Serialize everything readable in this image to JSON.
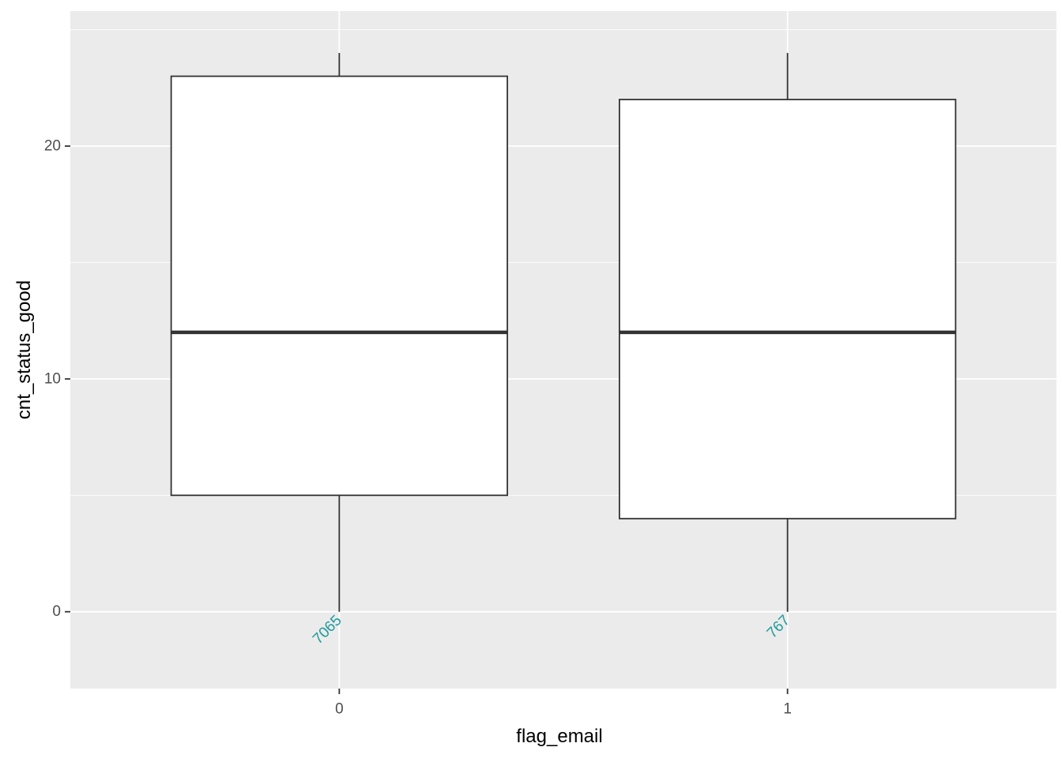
{
  "chart_data": {
    "type": "box",
    "title": "",
    "xlabel": "flag_email",
    "ylabel": "cnt_status_good",
    "categories": [
      "0",
      "1"
    ],
    "boxes": [
      {
        "category": "0",
        "whisker_low": 0,
        "q1": 5,
        "median": 12,
        "q3": 23,
        "whisker_high": 24,
        "count": "7065"
      },
      {
        "category": "1",
        "whisker_low": 0,
        "q1": 4,
        "median": 12,
        "q3": 22,
        "whisker_high": 24,
        "count": "767"
      }
    ],
    "ylim": [
      -3.3,
      25.8
    ],
    "yticks": [
      0,
      10,
      20
    ],
    "ytick_labels": [
      "0",
      "10",
      "20"
    ],
    "ygrid_minor": [
      5,
      15,
      25
    ],
    "grid": true,
    "legend": "none",
    "colors": {
      "panel_background": "#ebebeb",
      "grid": "#ffffff",
      "box_fill": "#ffffff",
      "box_stroke": "#333333",
      "count_label": "#1e9a9a"
    }
  }
}
